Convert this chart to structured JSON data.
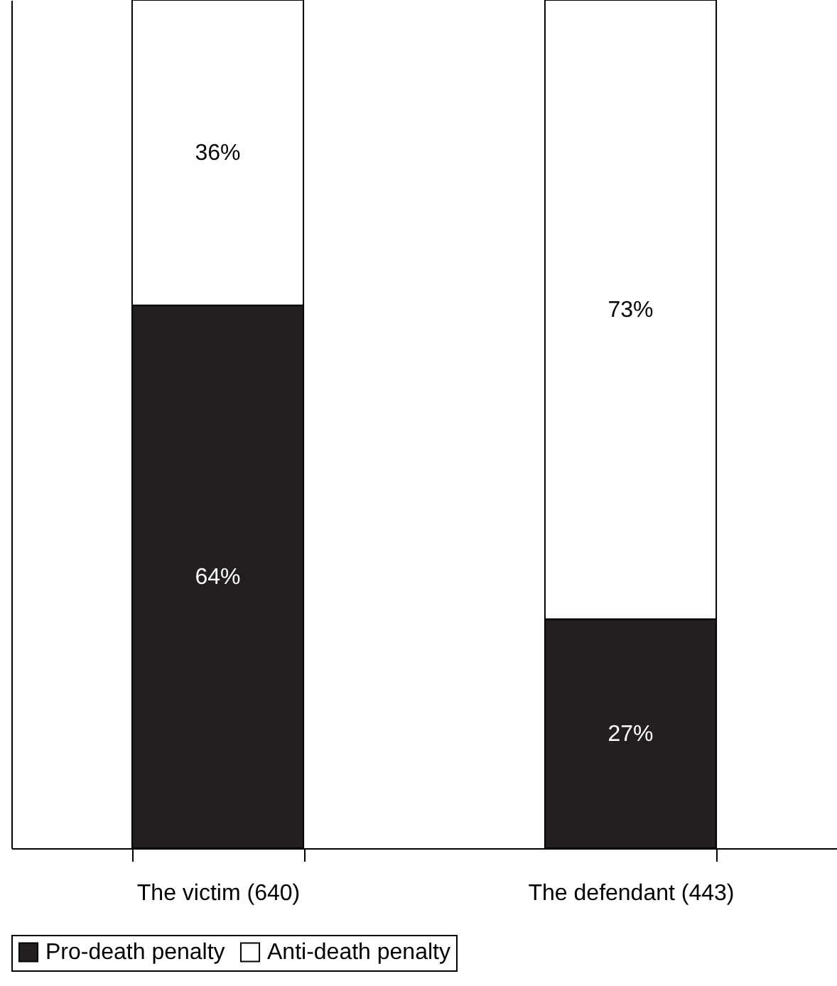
{
  "chart_data": {
    "type": "bar",
    "stacked": true,
    "categories": [
      "The victim (640)",
      "The defendant (443)"
    ],
    "series": [
      {
        "name": "Pro-death penalty",
        "color": "#231f20",
        "values": [
          64,
          27
        ],
        "value_labels": [
          "64%",
          "27%"
        ]
      },
      {
        "name": "Anti-death penalty",
        "color": "#ffffff",
        "values": [
          36,
          73
        ],
        "value_labels": [
          "36%",
          "73%"
        ]
      }
    ],
    "ylim": [
      0,
      100
    ],
    "tick_labels": "x",
    "legend": "bottom"
  }
}
